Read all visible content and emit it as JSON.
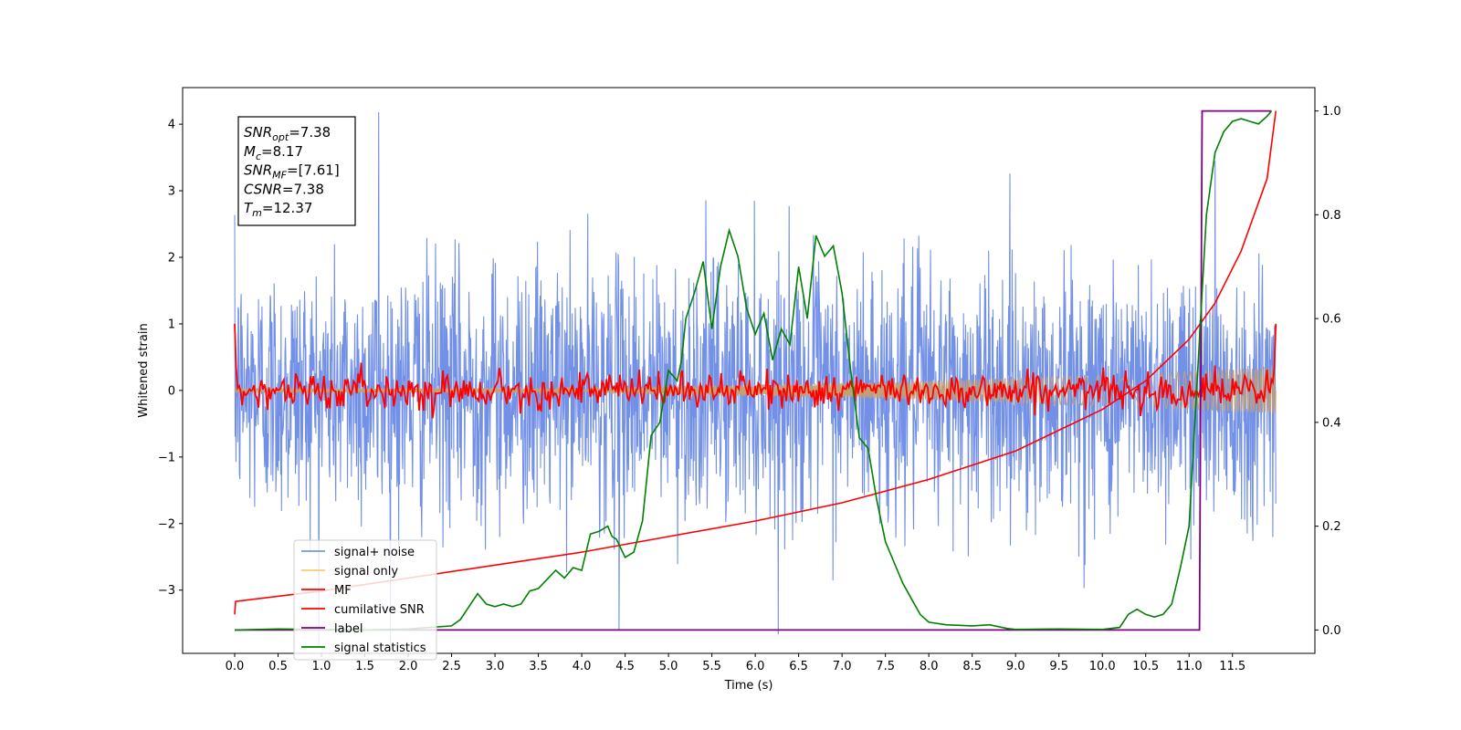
{
  "chart_data": {
    "type": "line",
    "xlabel": "Time (s)",
    "ylabel": "Whitened strain",
    "xlim": [
      -0.6,
      12.45
    ],
    "ylim": [
      -3.95,
      4.55
    ],
    "y2lim": [
      -0.045,
      1.045
    ],
    "x_ticks": [
      "0.0",
      "0.5",
      "1.0",
      "1.5",
      "2.0",
      "2.5",
      "3.0",
      "3.5",
      "4.0",
      "4.5",
      "5.0",
      "5.5",
      "6.0",
      "6.5",
      "7.0",
      "7.5",
      "8.0",
      "8.5",
      "9.0",
      "9.5",
      "10.0",
      "10.5",
      "11.0",
      "11.5"
    ],
    "y_ticks": [
      "−3",
      "−2",
      "−1",
      "0",
      "1",
      "2",
      "3",
      "4"
    ],
    "y2_ticks": [
      "0.0",
      "0.2",
      "0.4",
      "0.6",
      "0.8",
      "1.0"
    ],
    "annotation": {
      "lines": [
        {
          "sym": "SNR",
          "sub": "opt",
          "val": "=7.38"
        },
        {
          "sym": "M",
          "sub": "c",
          "val": "=8.17"
        },
        {
          "sym": "SNR",
          "sub": "MF",
          "val": "=[7.61]"
        },
        {
          "sym": "CSNR",
          "sub": "",
          "val": "=7.38"
        },
        {
          "sym": "T",
          "sub": "m",
          "val": "=12.37"
        }
      ]
    },
    "series": [
      {
        "name": "signal+ noise",
        "color": "#6b8ae6",
        "axis": "left",
        "style": "noise",
        "x_range": [
          0.0,
          12.0
        ],
        "sigma": 0.95,
        "notable_spikes": [
          [
            1.66,
            4.18
          ],
          [
            4.43,
            -3.6
          ],
          [
            11.3,
            3.45
          ]
        ]
      },
      {
        "name": "signal only",
        "color": "#f6c97a",
        "axis": "left",
        "style": "chirp",
        "x_range": [
          0.0,
          12.0
        ],
        "amplitude_start": 0.03,
        "amplitude_end": 0.35
      },
      {
        "name": "MF",
        "color": "#ff0000",
        "axis": "left",
        "style": "mf",
        "x_range": [
          0.0,
          12.0
        ],
        "start_value": 1.0,
        "end_value": 1.0,
        "jitter": 0.13
      },
      {
        "name": "cumilative SNR",
        "color": "#ff0000",
        "axis": "right",
        "x": [
          0.0,
          0.01,
          1.0,
          2.0,
          3.0,
          4.0,
          5.0,
          6.0,
          7.0,
          8.0,
          9.0,
          10.0,
          10.5,
          11.0,
          11.3,
          11.6,
          11.9,
          12.0
        ],
        "y": [
          0.03,
          0.055,
          0.075,
          0.1,
          0.125,
          0.15,
          0.18,
          0.21,
          0.245,
          0.29,
          0.345,
          0.425,
          0.48,
          0.56,
          0.63,
          0.73,
          0.87,
          1.0
        ]
      },
      {
        "name": "label",
        "color": "#800080",
        "axis": "right",
        "x": [
          0.0,
          11.12,
          11.15,
          11.95
        ],
        "y": [
          0.0,
          0.0,
          1.0,
          1.0
        ]
      },
      {
        "name": "signal statistics",
        "color": "#008000",
        "axis": "right",
        "x": [
          0.0,
          0.5,
          1.0,
          1.5,
          2.0,
          2.5,
          2.6,
          2.7,
          2.8,
          2.9,
          3.0,
          3.1,
          3.2,
          3.3,
          3.4,
          3.5,
          3.7,
          3.8,
          3.9,
          4.0,
          4.1,
          4.2,
          4.3,
          4.35,
          4.4,
          4.5,
          4.6,
          4.7,
          4.8,
          4.9,
          5.0,
          5.1,
          5.15,
          5.2,
          5.3,
          5.4,
          5.5,
          5.6,
          5.7,
          5.8,
          5.9,
          6.0,
          6.1,
          6.2,
          6.3,
          6.4,
          6.5,
          6.55,
          6.6,
          6.7,
          6.8,
          6.9,
          7.0,
          7.1,
          7.2,
          7.3,
          7.4,
          7.5,
          7.6,
          7.7,
          7.8,
          7.9,
          8.0,
          8.2,
          8.5,
          8.7,
          8.9,
          9.0,
          9.5,
          10.0,
          10.2,
          10.3,
          10.4,
          10.5,
          10.6,
          10.7,
          10.8,
          10.9,
          11.0,
          11.1,
          11.2,
          11.3,
          11.4,
          11.5,
          11.6,
          11.7,
          11.8,
          11.9,
          11.95
        ],
        "y": [
          0.0,
          0.002,
          0.001,
          0.0,
          0.002,
          0.008,
          0.02,
          0.045,
          0.07,
          0.05,
          0.045,
          0.05,
          0.045,
          0.05,
          0.075,
          0.08,
          0.115,
          0.1,
          0.12,
          0.115,
          0.185,
          0.19,
          0.2,
          0.18,
          0.175,
          0.14,
          0.15,
          0.21,
          0.375,
          0.4,
          0.5,
          0.48,
          0.52,
          0.6,
          0.65,
          0.71,
          0.58,
          0.7,
          0.77,
          0.72,
          0.62,
          0.57,
          0.61,
          0.52,
          0.58,
          0.55,
          0.7,
          0.65,
          0.6,
          0.76,
          0.72,
          0.74,
          0.65,
          0.5,
          0.37,
          0.35,
          0.25,
          0.17,
          0.13,
          0.09,
          0.06,
          0.03,
          0.015,
          0.01,
          0.008,
          0.01,
          0.003,
          0.001,
          0.002,
          0.001,
          0.005,
          0.03,
          0.04,
          0.03,
          0.025,
          0.03,
          0.05,
          0.12,
          0.2,
          0.5,
          0.8,
          0.92,
          0.96,
          0.98,
          0.985,
          0.98,
          0.975,
          0.99,
          1.0
        ]
      }
    ],
    "legend_position": "lower-left"
  }
}
